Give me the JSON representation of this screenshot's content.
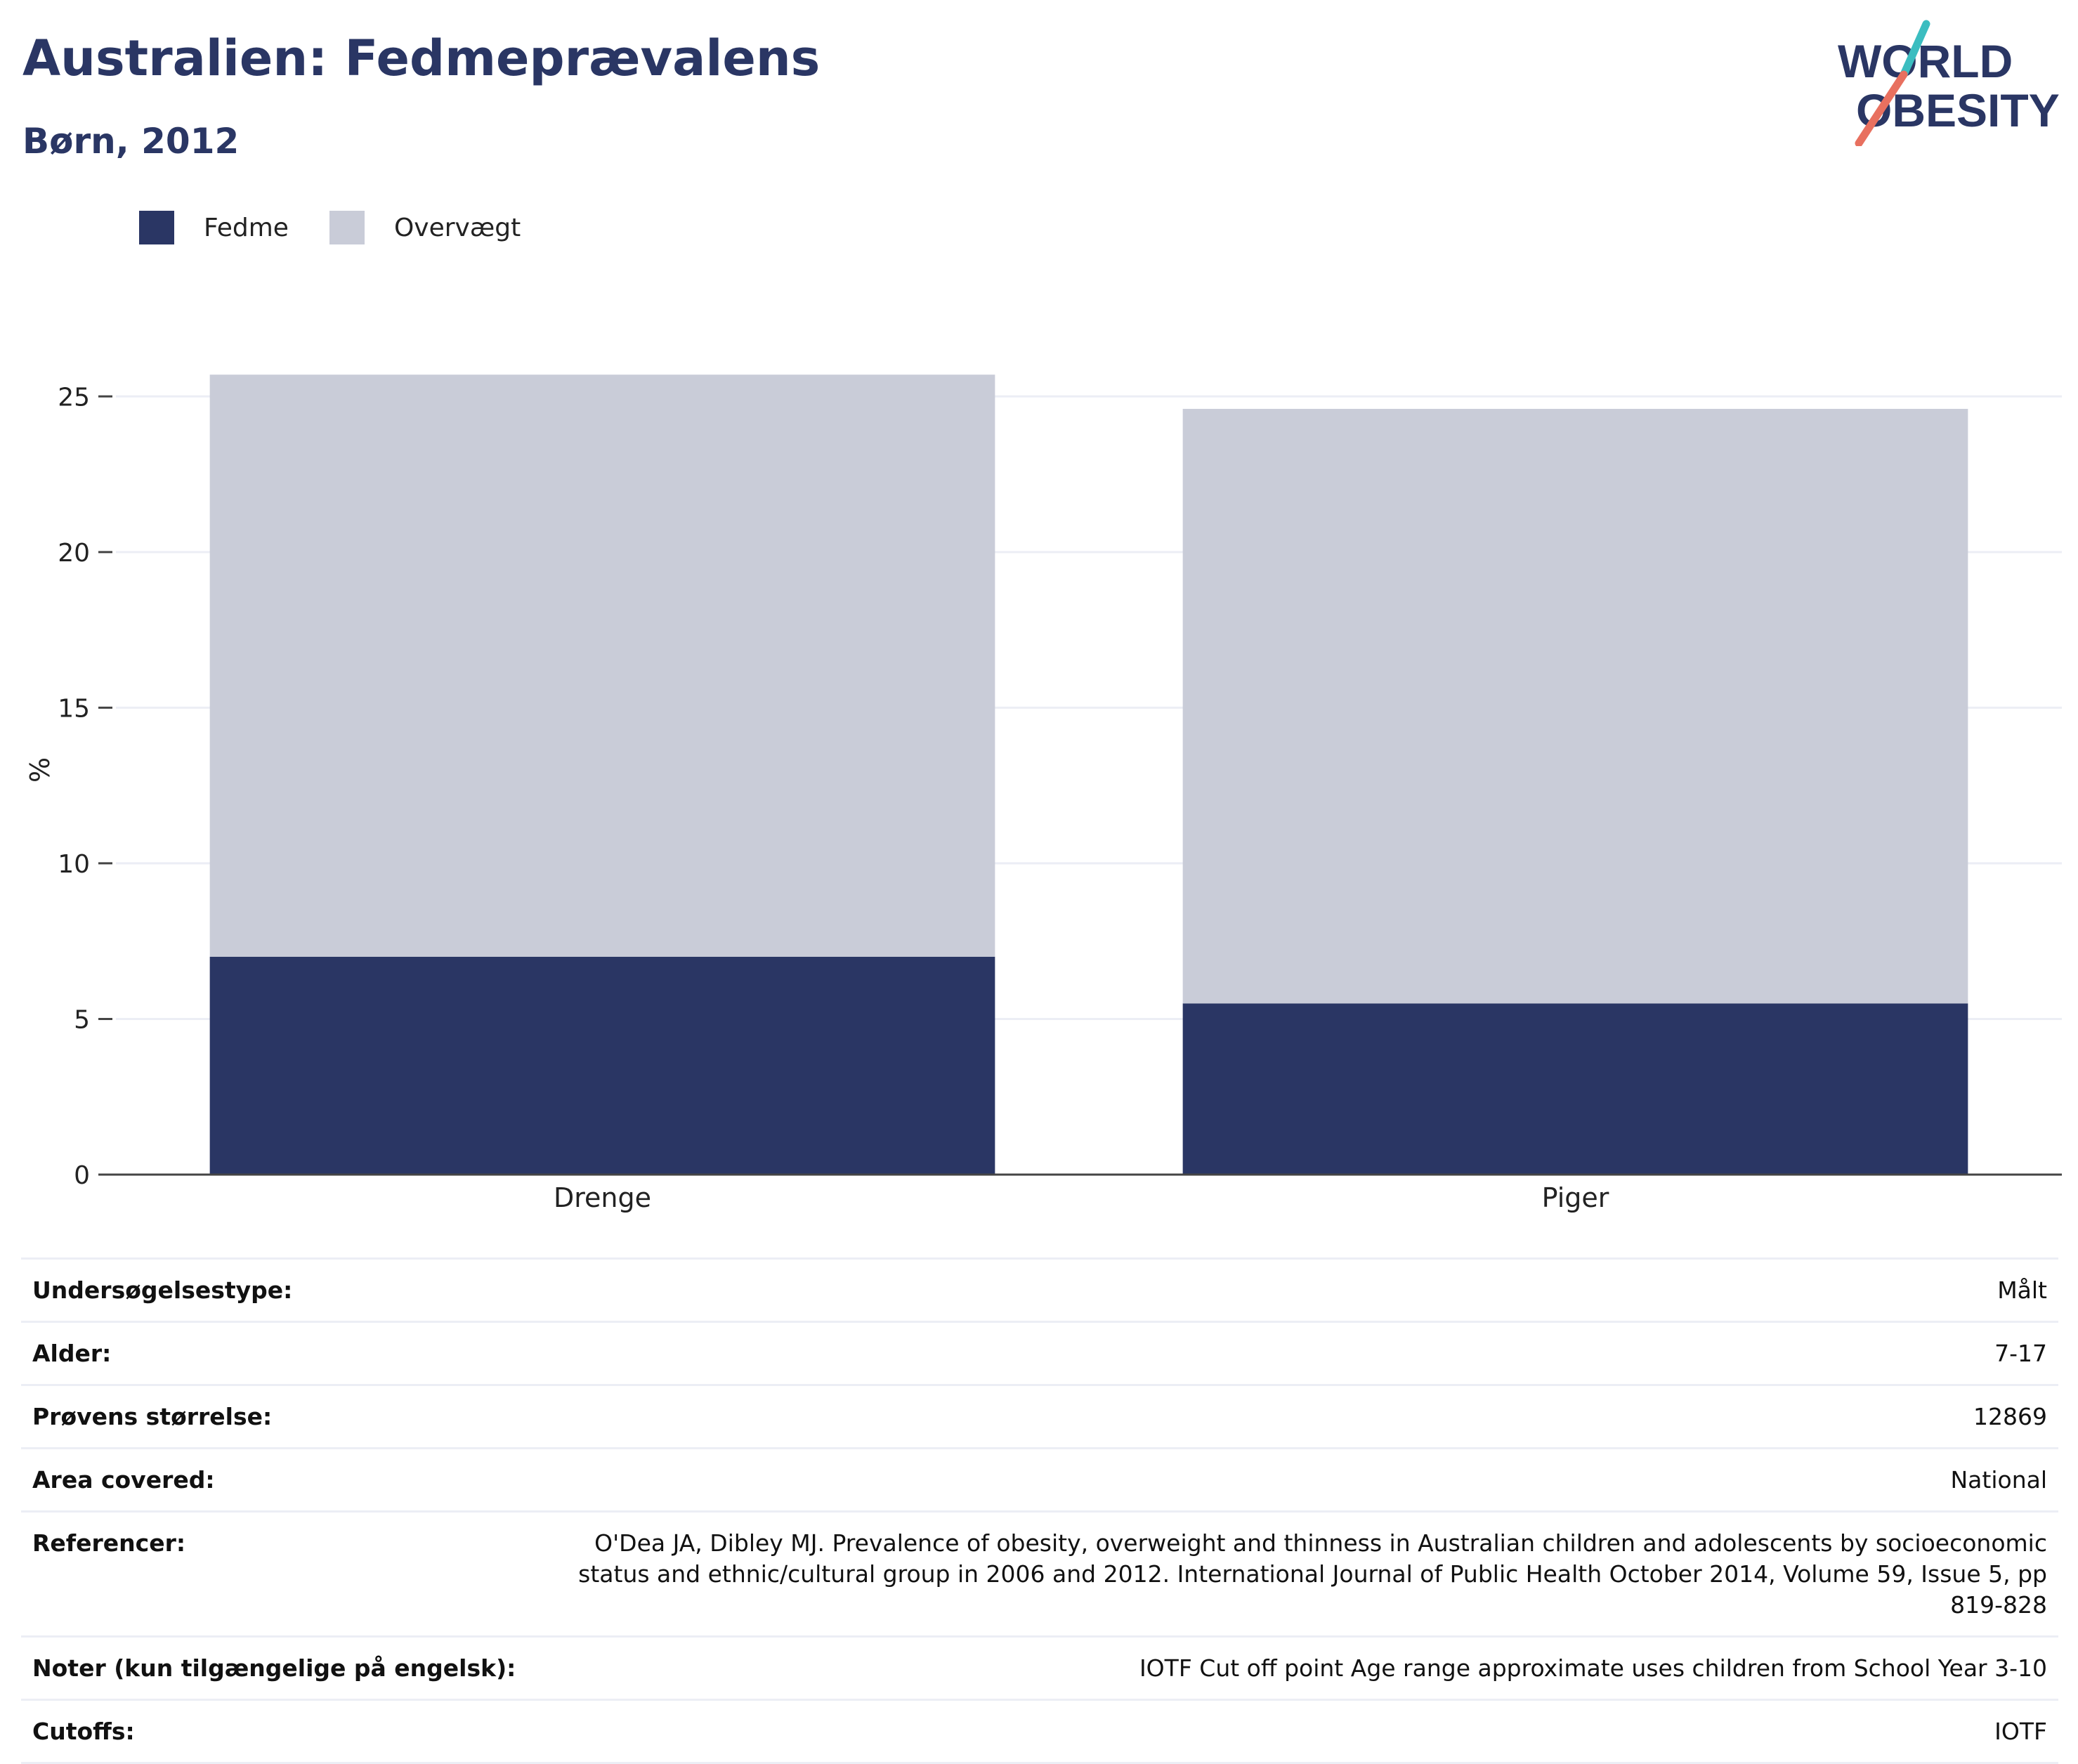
{
  "header": {
    "title": "Australien: Fedmeprævalens",
    "subtitle": "Børn, 2012"
  },
  "logo": {
    "line1": "WORLD",
    "line2": "OBESITY",
    "accent_top": "#3bbdc0",
    "accent_bottom": "#e8705f"
  },
  "legend": [
    {
      "label": "Fedme",
      "color": "#2a3664"
    },
    {
      "label": "Overvægt",
      "color": "#c9ccd8"
    }
  ],
  "chart_data": {
    "type": "bar",
    "stacked": true,
    "title": "Australien: Fedmeprævalens",
    "subtitle": "Børn, 2012",
    "categories": [
      "Drenge",
      "Piger"
    ],
    "series": [
      {
        "name": "Fedme",
        "values": [
          7.0,
          5.5
        ],
        "color": "#2a3664"
      },
      {
        "name": "Overvægt",
        "values": [
          18.7,
          19.1
        ],
        "color": "#c9ccd8"
      }
    ],
    "xlabel": "",
    "ylabel": "%",
    "ylim": [
      0,
      26
    ],
    "yticks": [
      0,
      5,
      10,
      15,
      20,
      25
    ],
    "grid": true,
    "legend_position": "top-left"
  },
  "details": [
    {
      "key": "Undersøgelsestype:",
      "value": "Målt"
    },
    {
      "key": "Alder:",
      "value": "7-17"
    },
    {
      "key": "Prøvens størrelse:",
      "value": "12869"
    },
    {
      "key": "Area covered:",
      "value": "National"
    },
    {
      "key": "Referencer:",
      "value": "O'Dea JA, Dibley MJ. Prevalence of obesity, overweight and thinness in Australian children and adolescents by socioeconomic status and ethnic/cultural group in 2006 and 2012. International Journal of Public Health October 2014, Volume 59, Issue 5, pp 819-828"
    },
    {
      "key": "Noter (kun tilgængelige på engelsk):",
      "value": "IOTF Cut off point Age range approximate uses children from School Year 3-10"
    },
    {
      "key": "Cutoffs:",
      "value": "IOTF"
    }
  ]
}
